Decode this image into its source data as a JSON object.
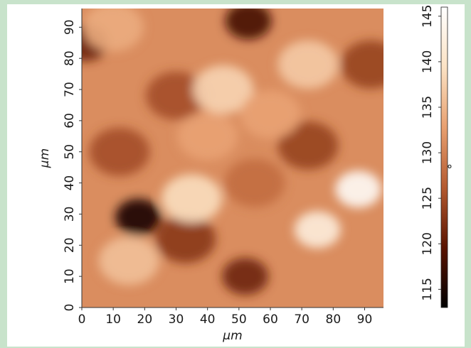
{
  "chart_data": {
    "type": "heatmap",
    "title": "",
    "xlabel": "μm",
    "ylabel": "μm",
    "xlim": [
      0,
      96
    ],
    "ylim": [
      0,
      96
    ],
    "x_ticks": [
      "0",
      "10",
      "20",
      "30",
      "40",
      "50",
      "60",
      "70",
      "80",
      "90"
    ],
    "y_ticks": [
      "0",
      "10",
      "20",
      "30",
      "40",
      "50",
      "60",
      "70",
      "80",
      "90"
    ],
    "colorbar": {
      "label": "°",
      "range": [
        113,
        146
      ],
      "ticks": [
        "115",
        "120",
        "125",
        "130",
        "135",
        "140",
        "145"
      ],
      "colormap": [
        "#000000",
        "#5a1300",
        "#b45a30",
        "#e8a070",
        "#fbe2c4",
        "#ffffff"
      ]
    },
    "features": [
      {
        "x": 18,
        "y": 29,
        "value": 115,
        "note": "dark pit"
      },
      {
        "x": 53,
        "y": 92,
        "value": 118
      },
      {
        "x": 1,
        "y": 85,
        "value": 121
      },
      {
        "x": 52,
        "y": 10,
        "value": 121
      },
      {
        "x": 33,
        "y": 22,
        "value": 123
      },
      {
        "x": 12,
        "y": 50,
        "value": 125
      },
      {
        "x": 30,
        "y": 68,
        "value": 125
      },
      {
        "x": 72,
        "y": 52,
        "value": 124
      },
      {
        "x": 92,
        "y": 78,
        "value": 124
      },
      {
        "x": 55,
        "y": 40,
        "value": 128
      },
      {
        "x": 88,
        "y": 38,
        "value": 145,
        "note": "bright plateau"
      },
      {
        "x": 75,
        "y": 25,
        "value": 142
      },
      {
        "x": 35,
        "y": 35,
        "value": 139
      },
      {
        "x": 15,
        "y": 15,
        "value": 136
      },
      {
        "x": 45,
        "y": 70,
        "value": 138
      },
      {
        "x": 72,
        "y": 78,
        "value": 137
      },
      {
        "x": 10,
        "y": 90,
        "value": 134
      },
      {
        "x": 40,
        "y": 55,
        "value": 133
      },
      {
        "x": 60,
        "y": 62,
        "value": 133
      }
    ]
  }
}
